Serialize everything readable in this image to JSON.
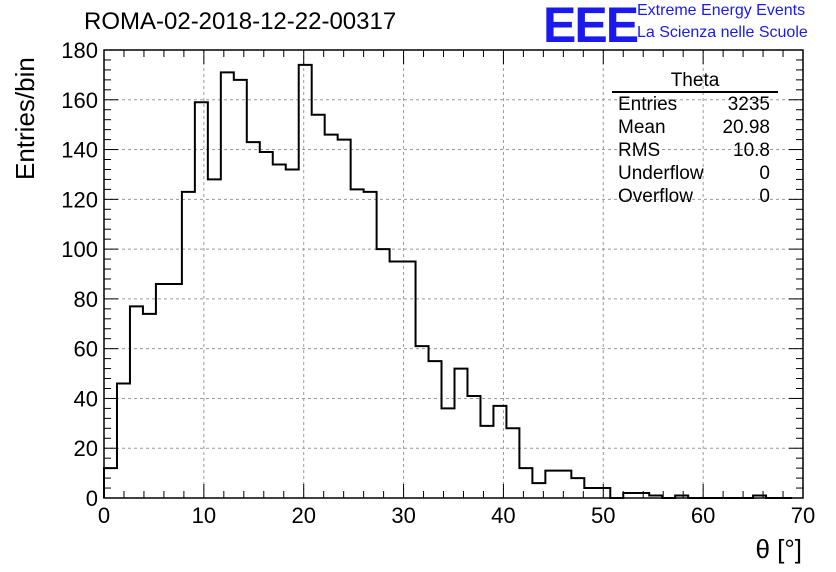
{
  "header": {
    "title": "ROMA-02-2018-12-22-00317",
    "logo_text": "EEE",
    "logo_line1": "Extreme Energy Events",
    "logo_line2": "La Scienza nelle Scuole"
  },
  "stats_box": {
    "name": "Theta",
    "rows": [
      {
        "label": "Entries",
        "value": "3235"
      },
      {
        "label": "Mean",
        "value": "20.98"
      },
      {
        "label": "RMS",
        "value": "10.8"
      },
      {
        "label": "Underflow",
        "value": "0"
      },
      {
        "label": "Overflow",
        "value": "0"
      }
    ]
  },
  "colors": {
    "logo": "#1a1aee",
    "histogram": "#000000",
    "grid": "#9a9a9a"
  },
  "chart_data": {
    "type": "bar",
    "histogram": true,
    "title": "ROMA-02-2018-12-22-00317",
    "xlabel": "θ [°]",
    "ylabel": "Entries/bin",
    "xlim": [
      0,
      70
    ],
    "ylim": [
      0,
      180
    ],
    "grid": true,
    "bin_width": 1.3,
    "bin_edges": [
      0,
      1.3,
      2.6,
      3.9,
      5.2,
      6.5,
      7.8,
      9.1,
      10.4,
      11.7,
      13.0,
      14.3,
      15.6,
      16.9,
      18.2,
      19.5,
      20.8,
      22.1,
      23.4,
      24.7,
      26.0,
      27.3,
      28.6,
      29.9,
      31.2,
      32.5,
      33.8,
      35.1,
      36.4,
      37.7,
      39.0,
      40.3,
      41.6,
      42.9,
      44.2,
      45.5,
      46.8,
      48.1,
      49.4,
      50.7,
      52.0,
      53.3,
      54.6,
      55.9,
      57.2,
      58.5,
      59.8,
      61.1,
      62.4,
      63.7,
      65.0,
      66.3,
      67.6,
      68.9
    ],
    "values": [
      12,
      46,
      77,
      74,
      86,
      86,
      123,
      159,
      128,
      171,
      168,
      143,
      139,
      134,
      132,
      174,
      154,
      146,
      144,
      124,
      123,
      100,
      95,
      95,
      61,
      55,
      36,
      52,
      41,
      29,
      37,
      28,
      12,
      6,
      11,
      11,
      8,
      4,
      4,
      0,
      2,
      2,
      1,
      0,
      1,
      0,
      0,
      0,
      0,
      0,
      1,
      0,
      0
    ],
    "x_ticks": [
      0,
      10,
      20,
      30,
      40,
      50,
      60,
      70
    ],
    "y_ticks": [
      0,
      20,
      40,
      60,
      80,
      100,
      120,
      140,
      160,
      180
    ],
    "legend_position": "top-right"
  }
}
